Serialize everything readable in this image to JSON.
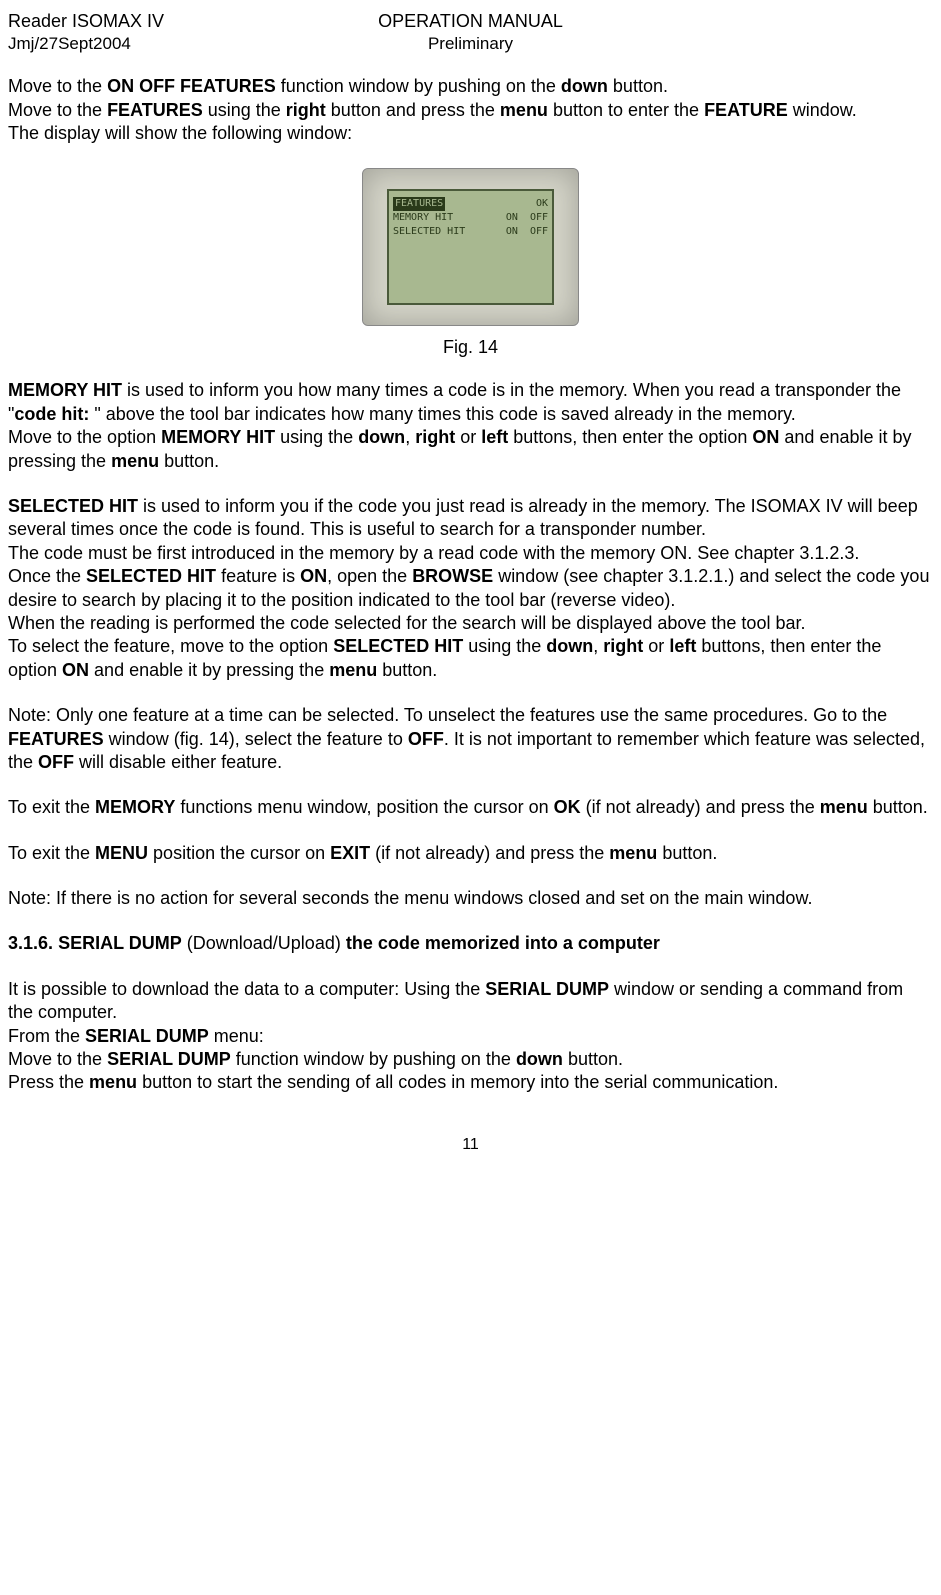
{
  "header": {
    "left_title": "Reader ISOMAX IV",
    "left_sub": "Jmj/27Sept2004",
    "center_title": "OPERATION MANUAL",
    "center_sub": "Preliminary"
  },
  "intro": {
    "p1_1": "Move to the ",
    "p1_2": "ON OFF FEATURES",
    "p1_3": " function window by pushing on the ",
    "p1_4": "down",
    "p1_5": " button.",
    "p2_1": "Move to the ",
    "p2_2": "FEATURES",
    "p2_3": " using the ",
    "p2_4": "right",
    "p2_5": " button and press the ",
    "p2_6": "menu",
    "p2_7": " button to enter the ",
    "p2_8": "FEATURE",
    "p2_9": " window.",
    "p3": "The display will show the following window:"
  },
  "figure": {
    "caption": "Fig. 14",
    "lcd": {
      "row1_left": "FEATURES",
      "row1_right": "OK",
      "row2_left": "MEMORY HIT",
      "row2_on": "ON",
      "row2_off": "OFF",
      "row3_left": "SELECTED HIT",
      "row3_on": "ON",
      "row3_off": "OFF"
    }
  },
  "memhit": {
    "p1_1": "MEMORY HIT",
    "p1_2": " is used to inform you how many times a code is in the memory. When you read a transponder the \"",
    "p1_3": "code hit:",
    "p1_4": " \" above the tool bar indicates how many times this code is saved already in the memory.",
    "p2_1": "Move to the option ",
    "p2_2": "MEMORY HIT",
    "p2_3": " using the ",
    "p2_4": "down",
    "p2_5": ", ",
    "p2_6": "right",
    "p2_7": " or ",
    "p2_8": "left",
    "p2_9": " buttons, then enter the option ",
    "p2_10": "ON",
    "p2_11": " and enable it by pressing the ",
    "p2_12": "menu",
    "p2_13": " button."
  },
  "selhit": {
    "p1_1": "SELECTED HIT",
    "p1_2": " is used to inform you if the code you just read is already in the memory. The ISOMAX IV will beep several times once the code is found. This is useful to search for a transponder number.",
    "p2": "The code must be first introduced in the memory by a read code with the memory ON. See chapter 3.1.2.3.",
    "p3_1": "Once the ",
    "p3_2": "SELECTED HIT",
    "p3_3": " feature is ",
    "p3_4": "ON",
    "p3_5": ", open the ",
    "p3_6": "BROWSE",
    "p3_7": " window (see chapter 3.1.2.1.) and select the code you desire to search by placing it to the position indicated to the tool bar (reverse video).",
    "p4": "When the reading is performed the code selected for the search will be displayed above the tool bar.",
    "p5_1": "To select the feature, move to the option ",
    "p5_2": "SELECTED HIT",
    "p5_3": " using the ",
    "p5_4": "down",
    "p5_5": ", ",
    "p5_6": "right",
    "p5_7": " or ",
    "p5_8": "left",
    "p5_9": " buttons, then enter the option ",
    "p5_10": "ON",
    "p5_11": " and enable it by pressing the ",
    "p5_12": "menu",
    "p5_13": " button."
  },
  "note1": {
    "p1_1": "Note: Only one feature at a time can be selected. To unselect the features use the same procedures. Go to the ",
    "p1_2": "FEATURES",
    "p1_3": " window (fig. 14), select the feature to ",
    "p1_4": "OFF",
    "p1_5": ". It is not important to remember which feature was selected, the ",
    "p1_6": "OFF",
    "p1_7": " will disable either feature."
  },
  "exit1": {
    "p1_1": "To exit the ",
    "p1_2": "MEMORY",
    "p1_3": " functions menu window, position the cursor on ",
    "p1_4": "OK",
    "p1_5": " (if not already) and press the ",
    "p1_6": "menu",
    "p1_7": " button."
  },
  "exit2": {
    "p1_1": "To exit the ",
    "p1_2": "MENU",
    "p1_3": " position the cursor on ",
    "p1_4": "EXIT",
    "p1_5": " (if not already) and press the ",
    "p1_6": "menu",
    "p1_7": " button."
  },
  "note2": "Note: If there is no action for several seconds the menu windows closed and set on the main window.",
  "section": {
    "num": "3.1.6.",
    "title1": "SERIAL DUMP",
    "mid": " (Download/Upload) ",
    "title2": "the code memorized into a computer"
  },
  "serial": {
    "p1_1": "It is possible to download the data to a computer: Using the ",
    "p1_2": "SERIAL DUMP",
    "p1_3": " window or sending a command from the computer.",
    "p2_1": "From the ",
    "p2_2": "SERIAL DUMP",
    "p2_3": " menu:",
    "p3_1": "Move to the ",
    "p3_2": "SERIAL DUMP",
    "p3_3": " function window by pushing on the ",
    "p3_4": "down",
    "p3_5": " button.",
    "p4_1": "Press the ",
    "p4_2": "menu",
    "p4_3": " button to start the sending of all codes in memory into the serial communication."
  },
  "page_number": "11"
}
